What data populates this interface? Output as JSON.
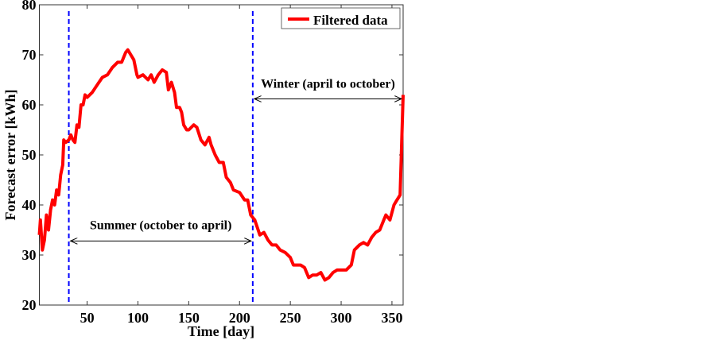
{
  "chart_data": {
    "type": "line",
    "title": "",
    "xlabel": "Time [day]",
    "ylabel": "Forecast error [kWh]",
    "xlim": [
      3,
      361
    ],
    "ylim": [
      20,
      80
    ],
    "xticks": [
      50,
      100,
      150,
      200,
      250,
      300,
      350
    ],
    "yticks": [
      20,
      30,
      40,
      50,
      60,
      70,
      80
    ],
    "grid": false,
    "legend": {
      "placement": "top-right",
      "entries": [
        "Filtered data"
      ]
    },
    "colors": {
      "series": "#ff0000",
      "divider": "#0000ff",
      "annotation": "#000000"
    },
    "series": [
      {
        "name": "Filtered data",
        "x": [
          3,
          4,
          6,
          8,
          10,
          12,
          14,
          16,
          18,
          20,
          22,
          24,
          26,
          27,
          29,
          32,
          34,
          36,
          38,
          40,
          42,
          44,
          46,
          48,
          50,
          55,
          60,
          65,
          70,
          75,
          80,
          84,
          88,
          90,
          93,
          96,
          99,
          100,
          105,
          110,
          113,
          116,
          120,
          124,
          128,
          130,
          133,
          136,
          138,
          141,
          143,
          145,
          148,
          150,
          155,
          158,
          162,
          166,
          170,
          172,
          176,
          180,
          184,
          187,
          191,
          194,
          200,
          205,
          208,
          211,
          215,
          220,
          224,
          228,
          232,
          236,
          240,
          245,
          250,
          253,
          256,
          260,
          264,
          268,
          272,
          276,
          280,
          284,
          288,
          292,
          296,
          300,
          305,
          310,
          313,
          318,
          322,
          326,
          330,
          334,
          338,
          342,
          344,
          348,
          352,
          355,
          358,
          361
        ],
        "y": [
          34,
          37,
          31,
          33,
          38,
          35,
          39,
          41,
          40,
          43,
          42,
          46,
          48,
          53,
          52.5,
          53,
          54,
          53,
          52.5,
          56,
          55.5,
          60,
          60,
          62,
          61.5,
          62.5,
          64,
          65.5,
          66,
          67.5,
          68.5,
          68.5,
          70.5,
          71,
          70,
          69,
          66,
          65.5,
          66,
          65,
          66,
          64.5,
          66,
          67,
          66.5,
          63,
          64.5,
          62.5,
          59.5,
          59.5,
          58.5,
          56,
          55,
          55,
          56,
          55.5,
          53,
          52,
          53.5,
          52,
          50,
          48.5,
          48.5,
          45.5,
          44.5,
          43,
          42.5,
          41,
          41,
          38,
          37,
          34,
          34.5,
          33,
          32,
          32,
          31,
          30.5,
          29.5,
          28,
          28,
          28,
          27.5,
          25.5,
          26,
          26,
          26.5,
          25,
          25.5,
          26.5,
          27,
          27,
          27,
          28,
          31,
          32,
          32.5,
          32,
          33.5,
          34.5,
          35,
          37,
          38,
          37,
          40,
          41,
          42,
          62
        ]
      }
    ],
    "vlines": [
      32,
      213
    ],
    "annotations": [
      {
        "text": "Summer (october to april)",
        "from": 32,
        "to": 213,
        "y": 32.8,
        "text_y": 34.5
      },
      {
        "text": "Winter (april to october)",
        "from": 213,
        "to": 361,
        "y": 61.2,
        "text_y": 62.8
      }
    ]
  }
}
